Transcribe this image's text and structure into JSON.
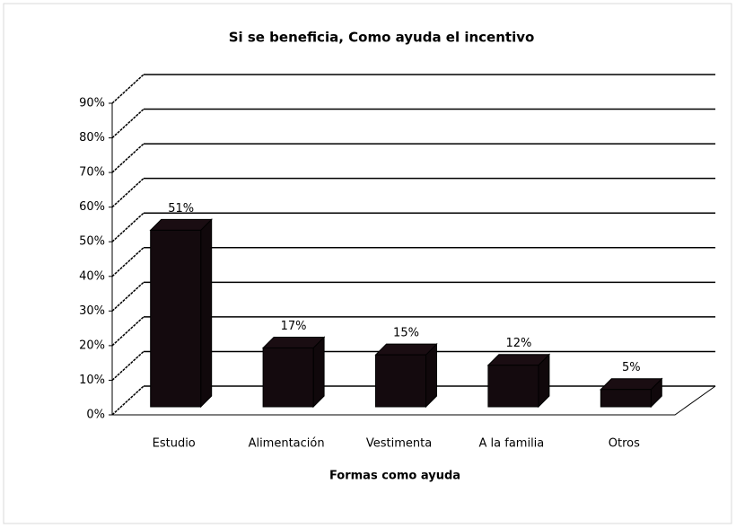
{
  "chart_data": {
    "type": "bar",
    "title": "Si se beneficia, Como ayuda el incentivo",
    "x_label": "Formas como ayuda",
    "categories": [
      "Estudio",
      "Alimentación",
      "Vestimenta",
      "A la familia",
      "Otros"
    ],
    "values": [
      51,
      17,
      15,
      12,
      5
    ],
    "value_labels": [
      "51%",
      "17%",
      "15%",
      "12%",
      "5%"
    ],
    "color": "#140a0e",
    "ylim": [
      0,
      90
    ],
    "yticks": [
      {
        "value": 0,
        "label": "0%"
      },
      {
        "value": 10,
        "label": "10%"
      },
      {
        "value": 20,
        "label": "20%"
      },
      {
        "value": 30,
        "label": "30%"
      },
      {
        "value": 40,
        "label": "40%"
      },
      {
        "value": 50,
        "label": "50%"
      },
      {
        "value": 60,
        "label": "60%"
      },
      {
        "value": 70,
        "label": "70%"
      },
      {
        "value": 80,
        "label": "80%"
      },
      {
        "value": 90,
        "label": "90%"
      }
    ],
    "grid": true
  }
}
